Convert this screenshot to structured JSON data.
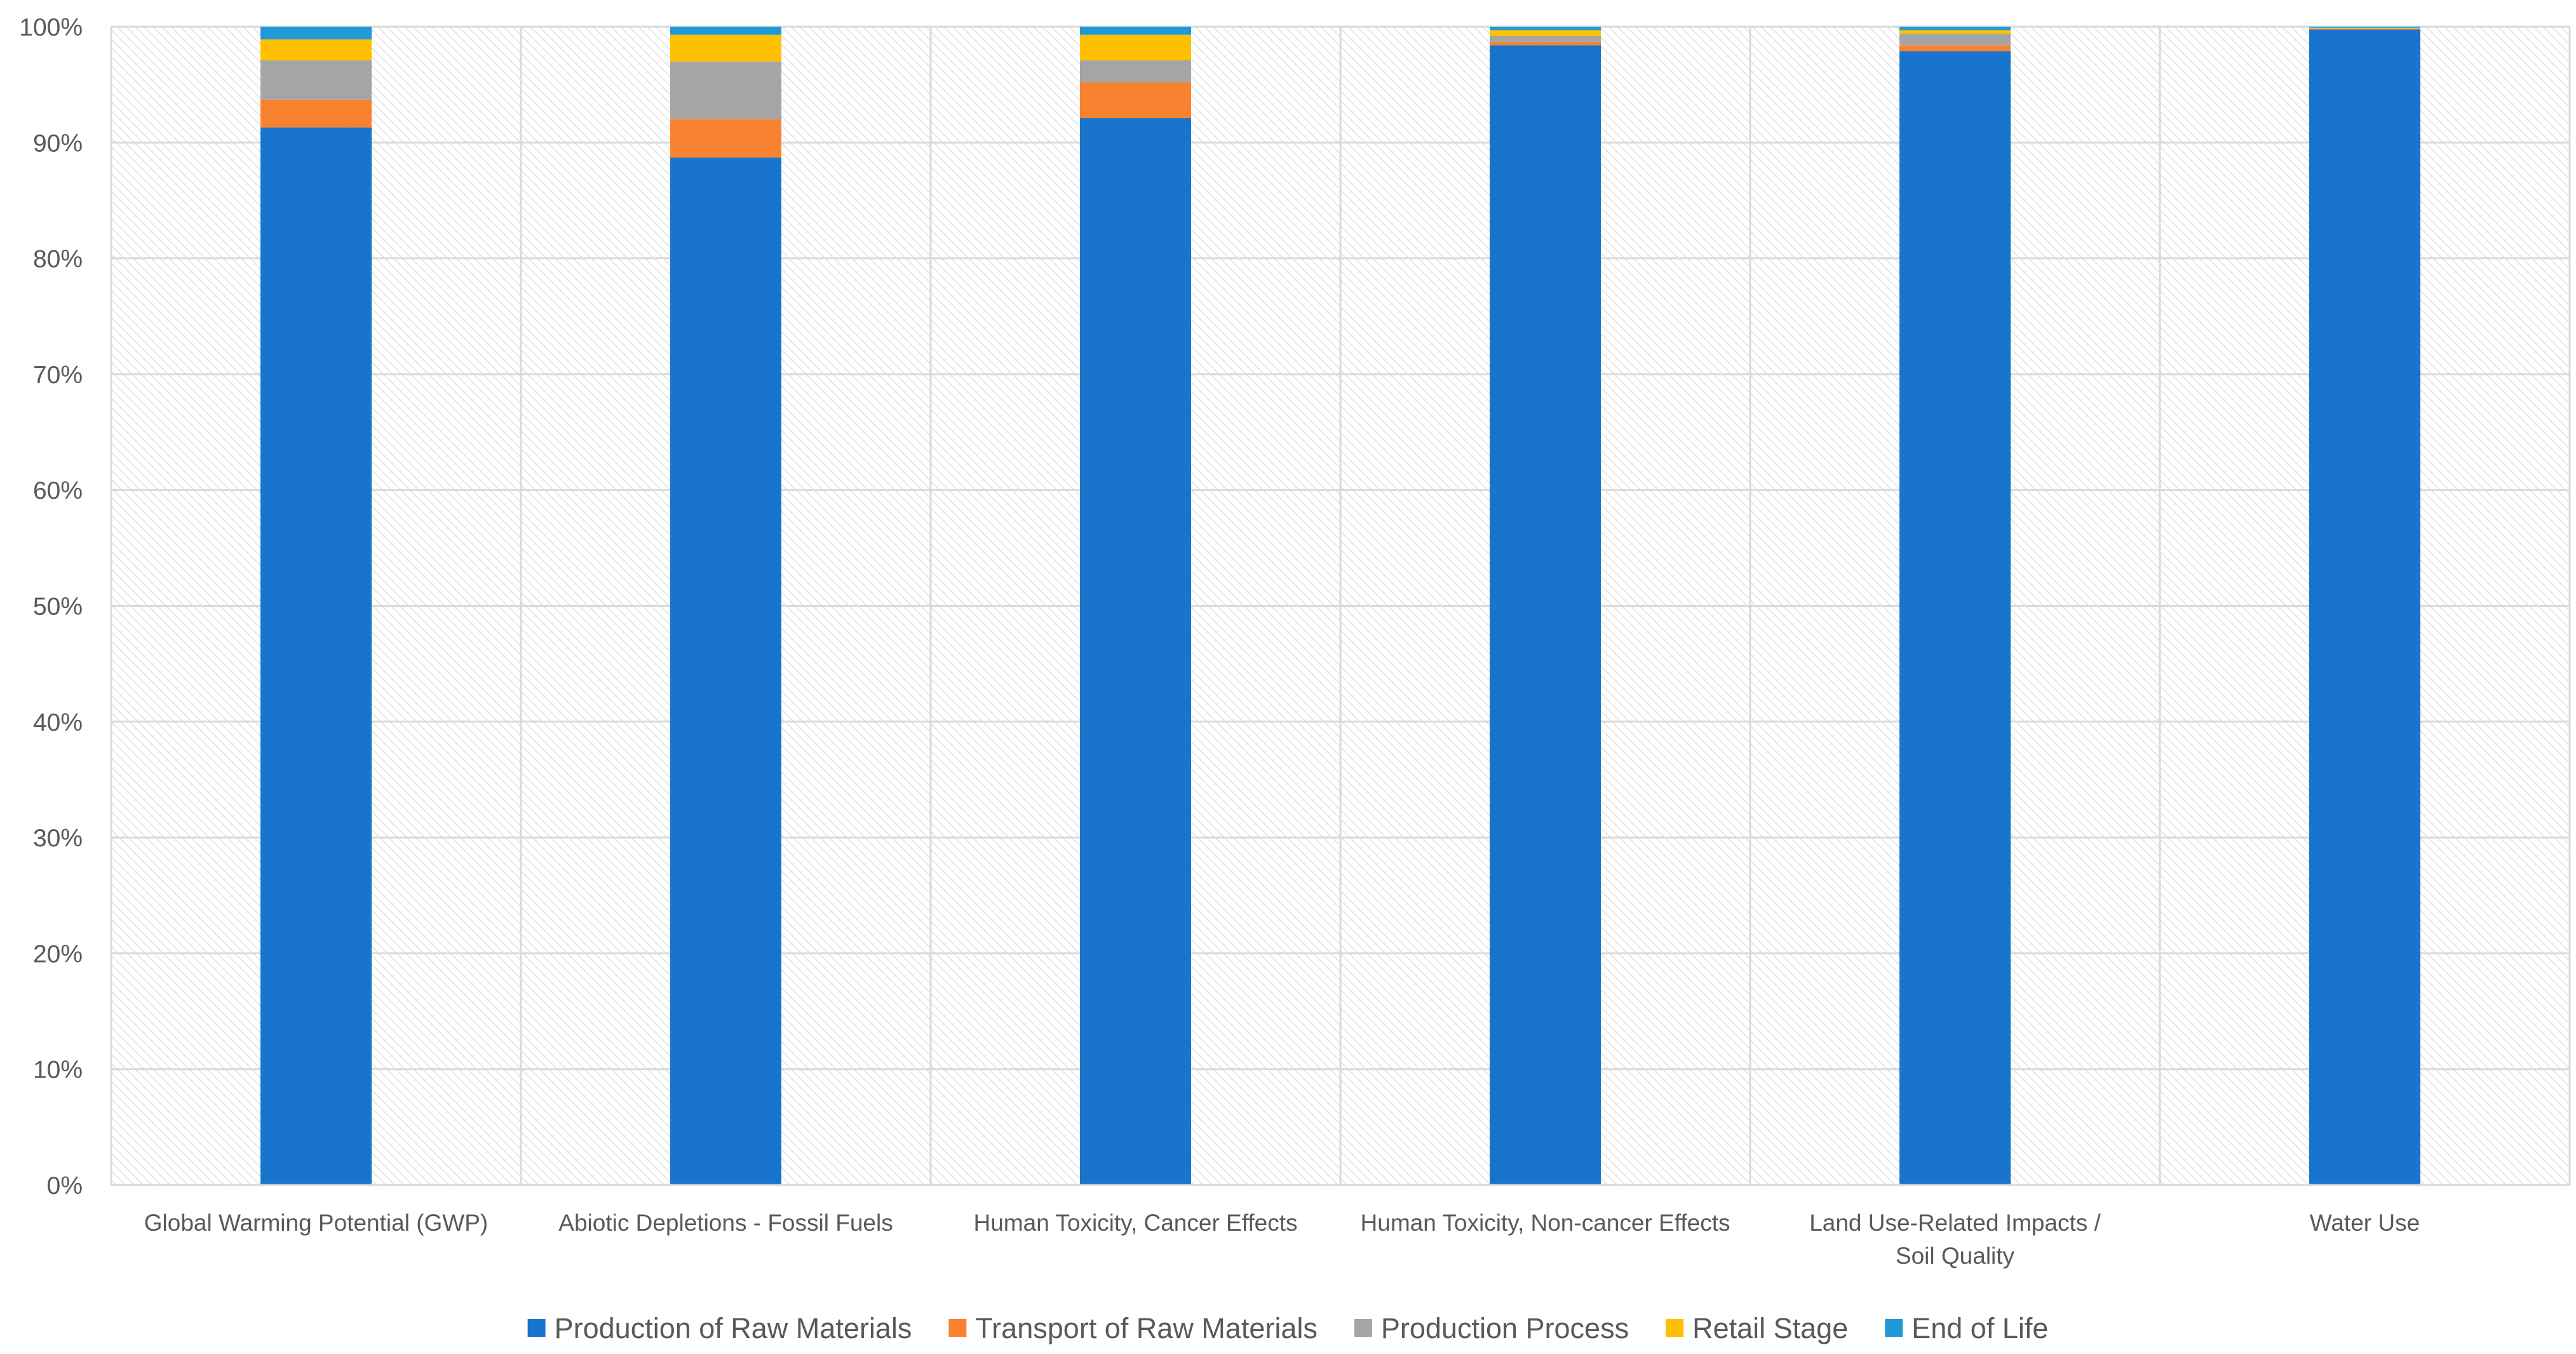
{
  "chart_data": {
    "type": "bar",
    "stacked": true,
    "percent_stacked": true,
    "title": "",
    "xlabel": "",
    "ylabel": "",
    "ylim": [
      0,
      100
    ],
    "ytick_values": [
      0,
      10,
      20,
      30,
      40,
      50,
      60,
      70,
      80,
      90,
      100
    ],
    "ytick_labels": [
      "0%",
      "10%",
      "20%",
      "30%",
      "40%",
      "50%",
      "60%",
      "70%",
      "80%",
      "90%",
      "100%"
    ],
    "grid": true,
    "legend_position": "bottom-center",
    "categories": [
      [
        "Global Warming Potential (GWP)"
      ],
      [
        "Abiotic Depletions - Fossil Fuels"
      ],
      [
        "Human Toxicity, Cancer Effects"
      ],
      [
        "Human Toxicity, Non-cancer Effects"
      ],
      [
        "Land Use-Related Impacts /",
        "Soil Quality"
      ],
      [
        "Water Use"
      ]
    ],
    "series": [
      {
        "name": "Production of Raw Materials",
        "color": "#1874CD",
        "values": [
          91.3,
          88.7,
          92.1,
          98.4,
          97.9,
          99.75
        ]
      },
      {
        "name": "Transport of Raw Materials",
        "color": "#F98231",
        "values": [
          2.4,
          3.3,
          3.1,
          0.3,
          0.5,
          0.05
        ]
      },
      {
        "name": "Production Process",
        "color": "#A5A5A5",
        "values": [
          3.4,
          5.0,
          1.9,
          0.5,
          1.0,
          0.05
        ]
      },
      {
        "name": "Retail Stage",
        "color": "#FFC000",
        "values": [
          1.8,
          2.3,
          2.2,
          0.5,
          0.3,
          0.05
        ]
      },
      {
        "name": "End of Life",
        "color": "#1F9AD6",
        "values": [
          1.1,
          0.7,
          0.7,
          0.3,
          0.3,
          0.1
        ]
      }
    ]
  }
}
